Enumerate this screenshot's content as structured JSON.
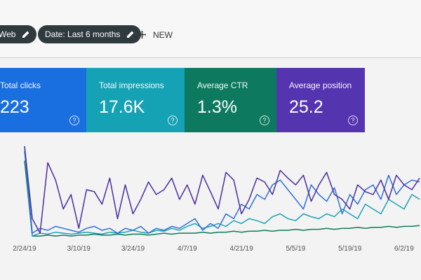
{
  "toolbar": {
    "chips": [
      "Web",
      "Date: Last 6 months"
    ],
    "new_button": "NEW"
  },
  "cards": [
    {
      "label": "Total clicks",
      "value": "223",
      "help": "?",
      "color": "#1a6fe0"
    },
    {
      "label": "Total impressions",
      "value": "17.6K",
      "help": "?",
      "color": "#16a2b5"
    },
    {
      "label": "Average CTR",
      "value": "1.3%",
      "help": "?",
      "color": "#0d7a5f"
    },
    {
      "label": "Average position",
      "value": "25.2",
      "help": "?",
      "color": "#5534b0"
    }
  ],
  "chart_data": {
    "type": "line",
    "categories": [
      "2/24/19",
      null,
      null,
      null,
      null,
      null,
      null,
      "3/10/19",
      null,
      null,
      null,
      null,
      null,
      null,
      "3/24/19",
      null,
      null,
      null,
      null,
      null,
      null,
      "4/7/19",
      null,
      null,
      null,
      null,
      null,
      null,
      "4/21/19",
      null,
      null,
      null,
      null,
      null,
      null,
      "5/5/19",
      null,
      null,
      null,
      null,
      null,
      null,
      "5/19/19",
      null,
      null,
      null,
      null,
      null,
      null,
      "6/2/19",
      null,
      null
    ],
    "ylim": [
      0,
      100
    ],
    "series": [
      {
        "color": "#0e7a5c",
        "values": [
          80,
          2,
          2,
          3,
          2,
          3,
          2,
          3,
          3,
          4,
          3,
          3,
          4,
          3,
          4,
          4,
          3,
          4,
          5,
          4,
          5,
          5,
          5,
          6,
          5,
          6,
          6,
          7,
          6,
          7,
          7,
          8,
          7,
          8,
          8,
          9,
          8,
          9,
          9,
          10,
          9,
          10,
          10,
          11,
          10,
          11,
          11,
          12,
          11,
          12,
          12,
          13
        ]
      },
      {
        "color": "#1aa3b3",
        "values": [
          90,
          2,
          5,
          4,
          6,
          5,
          4,
          5,
          6,
          5,
          4,
          6,
          5,
          6,
          8,
          6,
          5,
          8,
          7,
          10,
          8,
          12,
          15,
          10,
          12,
          15,
          12,
          18,
          15,
          20,
          18,
          15,
          22,
          25,
          20,
          18,
          25,
          22,
          20,
          25,
          22,
          30,
          25,
          20,
          35,
          30,
          25,
          40,
          35,
          30,
          45,
          40
        ]
      },
      {
        "color": "#2f6fd6",
        "values": [
          95,
          5,
          10,
          8,
          12,
          10,
          8,
          6,
          10,
          12,
          8,
          10,
          5,
          10,
          8,
          12,
          5,
          10,
          8,
          12,
          10,
          15,
          20,
          8,
          15,
          10,
          25,
          20,
          35,
          30,
          45,
          40,
          55,
          60,
          50,
          40,
          30,
          55,
          45,
          38,
          52,
          25,
          45,
          35,
          50,
          55,
          40,
          65,
          45,
          55,
          60,
          58
        ]
      },
      {
        "color": "#4a2e9e",
        "values": [
          95,
          20,
          5,
          78,
          60,
          30,
          45,
          10,
          50,
          48,
          35,
          62,
          20,
          55,
          25,
          40,
          58,
          45,
          50,
          62,
          40,
          55,
          35,
          65,
          48,
          30,
          68,
          60,
          25,
          40,
          62,
          58,
          45,
          70,
          62,
          55,
          65,
          38,
          55,
          68,
          45,
          40,
          30,
          55,
          48,
          45,
          60,
          40,
          65,
          55,
          50,
          62
        ]
      }
    ]
  }
}
